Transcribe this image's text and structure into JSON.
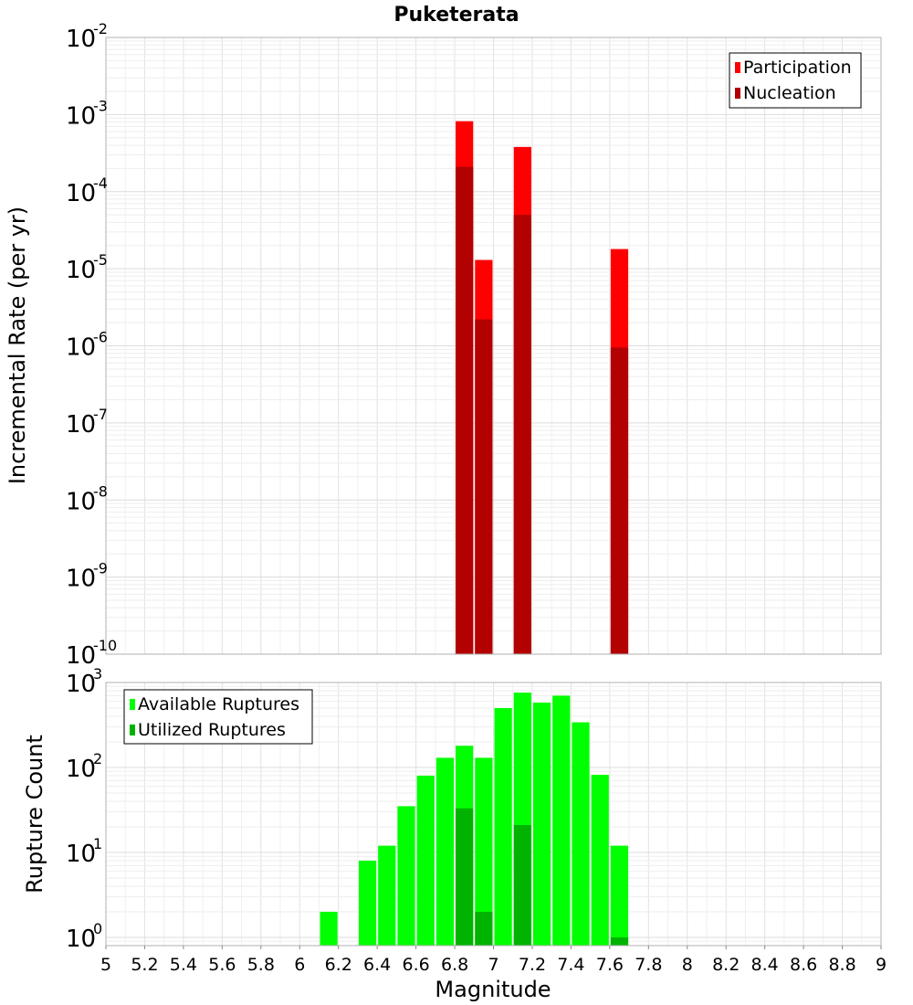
{
  "chart_data": [
    {
      "type": "bar",
      "title": "Puketerata",
      "ylabel": "Incremental Rate (per yr)",
      "xlabel": "",
      "xlim": [
        5,
        9
      ],
      "ylim": [
        1e-10,
        0.01
      ],
      "yscale": "log",
      "grid": true,
      "legend_position": "top-right",
      "y_tick_exponents": [
        "-10",
        "-9",
        "-8",
        "-7",
        "-6",
        "-5",
        "-4",
        "-3",
        "-2"
      ],
      "bin_width": 0.1,
      "series": [
        {
          "name": "Participation",
          "color": "#ff0000",
          "x": [
            6.85,
            6.95,
            7.15,
            7.65
          ],
          "values": [
            0.00082,
            1.3e-05,
            0.00038,
            1.8e-05
          ]
        },
        {
          "name": "Nucleation",
          "color": "#b30000",
          "x": [
            6.85,
            6.95,
            7.15,
            7.65
          ],
          "values": [
            0.00021,
            2.2e-06,
            5e-05,
            9.5e-07
          ]
        }
      ]
    },
    {
      "type": "bar",
      "title": "",
      "ylabel": "Rupture Count",
      "xlabel": "Magnitude",
      "xlim": [
        5,
        9
      ],
      "ylim": [
        0.8,
        1000
      ],
      "yscale": "log",
      "grid": true,
      "legend_position": "top-left",
      "x_ticks": [
        "5",
        "5.2",
        "5.4",
        "5.6",
        "5.8",
        "6",
        "6.2",
        "6.4",
        "6.6",
        "6.8",
        "7",
        "7.2",
        "7.4",
        "7.6",
        "7.8",
        "8",
        "8.2",
        "8.4",
        "8.6",
        "8.8",
        "9"
      ],
      "y_tick_exponents": [
        "0",
        "1",
        "2",
        "3"
      ],
      "bin_width": 0.1,
      "series": [
        {
          "name": "Available Ruptures",
          "color": "#00ff00",
          "x": [
            6.15,
            6.35,
            6.45,
            6.55,
            6.65,
            6.75,
            6.85,
            6.95,
            7.05,
            7.15,
            7.25,
            7.35,
            7.45,
            7.55,
            7.65
          ],
          "values": [
            2,
            8,
            12,
            35,
            80,
            130,
            180,
            130,
            500,
            760,
            580,
            700,
            340,
            82,
            12
          ]
        },
        {
          "name": "Utilized Ruptures",
          "color": "#00b300",
          "x": [
            6.85,
            6.95,
            7.15,
            7.65
          ],
          "values": [
            33,
            2,
            21,
            1
          ]
        }
      ]
    }
  ]
}
